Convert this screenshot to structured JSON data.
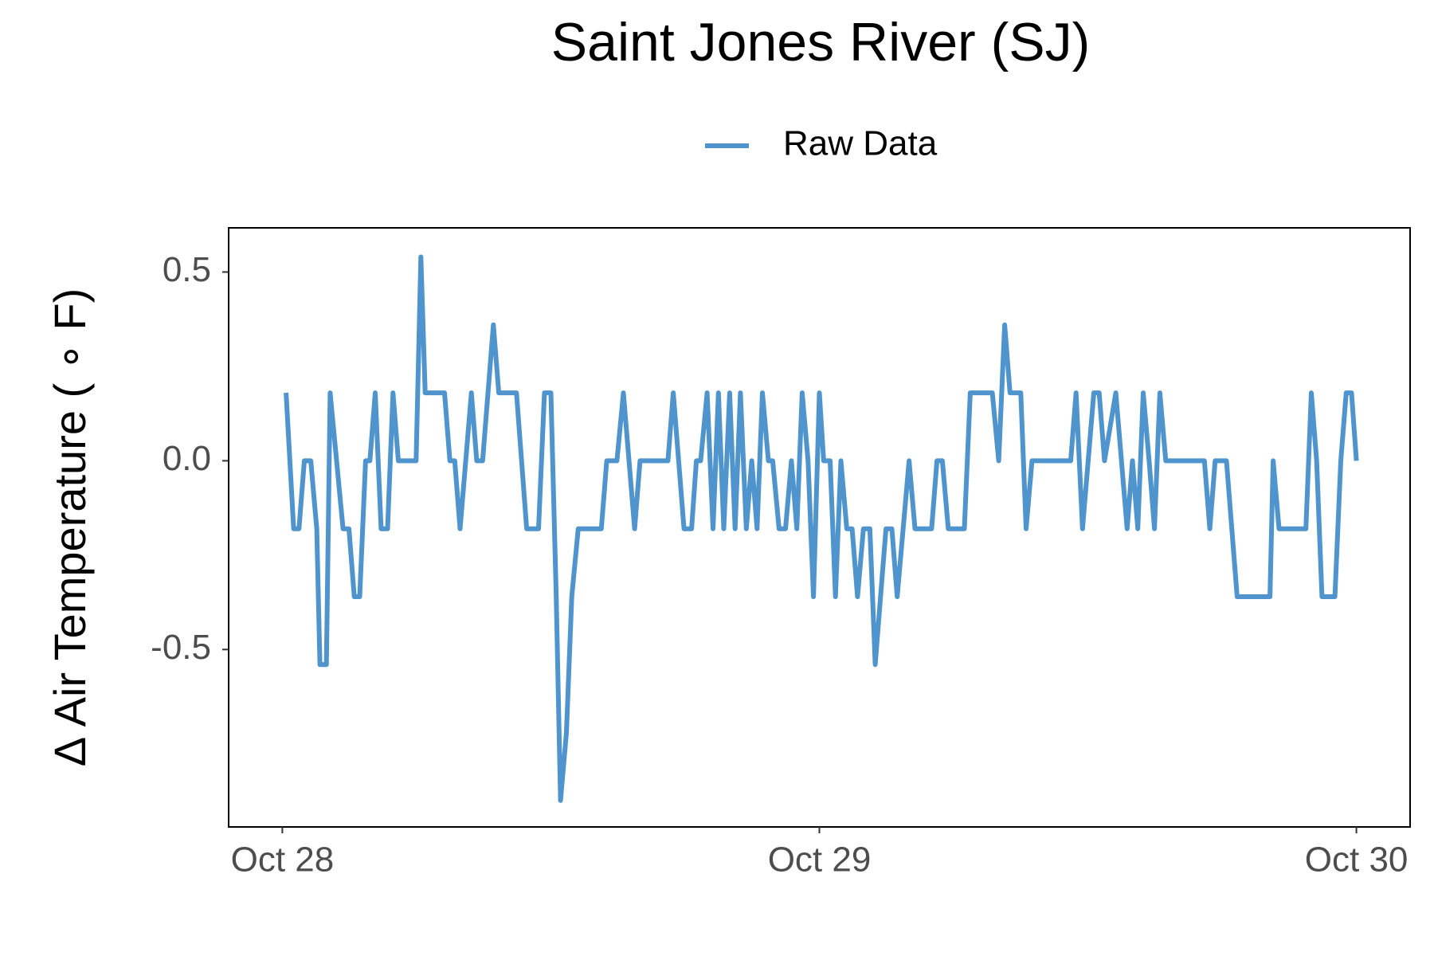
{
  "chart_data": {
    "type": "line",
    "title": "Saint Jones River (SJ)",
    "y_label": "Δ Air Temperature ( ∘ F)",
    "x": [
      28.007,
      28.021,
      28.031,
      28.041,
      28.053,
      28.064,
      28.07,
      28.082,
      28.089,
      28.113,
      28.124,
      28.134,
      28.144,
      28.155,
      28.163,
      28.173,
      28.184,
      28.196,
      28.206,
      28.216,
      28.249,
      28.258,
      28.266,
      28.302,
      28.312,
      28.321,
      28.331,
      28.352,
      28.362,
      28.373,
      28.393,
      28.403,
      28.436,
      28.455,
      28.477,
      28.488,
      28.5,
      28.51,
      28.518,
      28.529,
      28.539,
      28.551,
      28.594,
      28.604,
      28.623,
      28.635,
      28.656,
      28.666,
      28.718,
      28.728,
      28.748,
      28.762,
      28.771,
      28.779,
      28.791,
      28.802,
      28.812,
      28.822,
      28.833,
      28.843,
      28.853,
      28.864,
      28.874,
      28.884,
      28.894,
      28.905,
      28.913,
      28.925,
      28.937,
      28.948,
      28.958,
      28.968,
      28.979,
      28.989,
      29.0,
      29.008,
      29.02,
      29.03,
      29.04,
      29.051,
      29.061,
      29.071,
      29.082,
      29.094,
      29.104,
      29.114,
      29.124,
      29.135,
      29.145,
      29.167,
      29.178,
      29.209,
      29.219,
      29.229,
      29.24,
      29.27,
      29.281,
      29.322,
      29.334,
      29.345,
      29.355,
      29.375,
      29.385,
      29.396,
      29.468,
      29.478,
      29.49,
      29.511,
      29.521,
      29.531,
      29.552,
      29.573,
      29.583,
      29.593,
      29.603,
      29.614,
      29.624,
      29.634,
      29.645,
      29.717,
      29.727,
      29.737,
      29.758,
      29.778,
      29.839,
      29.845,
      29.856,
      29.906,
      29.916,
      29.926,
      29.936,
      29.96,
      29.971,
      29.981,
      29.991,
      30.0
    ],
    "series": [
      {
        "name": "Raw Data",
        "color": "#4f94cd",
        "values": [
          0.18,
          -0.18,
          -0.18,
          0,
          0,
          -0.18,
          -0.54,
          -0.54,
          0.18,
          -0.18,
          -0.18,
          -0.36,
          -0.36,
          0,
          0,
          0.18,
          -0.18,
          -0.18,
          0.18,
          0,
          0,
          0.54,
          0.18,
          0.18,
          0,
          0,
          -0.18,
          0.18,
          0,
          0,
          0.36,
          0.18,
          0.18,
          -0.18,
          -0.18,
          0.18,
          0.18,
          -0.36,
          -0.9,
          -0.72,
          -0.36,
          -0.18,
          -0.18,
          0,
          0,
          0.18,
          -0.18,
          0,
          0,
          0.18,
          -0.18,
          -0.18,
          0,
          0,
          0.18,
          -0.18,
          0.18,
          -0.18,
          0.18,
          -0.18,
          0.18,
          -0.18,
          0,
          -0.18,
          0.18,
          0,
          0,
          -0.18,
          -0.18,
          0,
          -0.18,
          0.18,
          0,
          -0.36,
          0.18,
          0,
          0,
          -0.36,
          0,
          -0.18,
          -0.18,
          -0.36,
          -0.18,
          -0.18,
          -0.54,
          -0.36,
          -0.18,
          -0.18,
          -0.36,
          0,
          -0.18,
          -0.18,
          0,
          0,
          -0.18,
          -0.18,
          0.18,
          0.18,
          0,
          0.36,
          0.18,
          0.18,
          -0.18,
          0,
          0,
          0.18,
          -0.18,
          0.18,
          0.18,
          0,
          0.18,
          -0.18,
          0,
          -0.18,
          0.18,
          0,
          -0.18,
          0.18,
          0,
          0,
          -0.18,
          0,
          0,
          -0.36,
          -0.36,
          0,
          -0.18,
          -0.18,
          0.18,
          0,
          -0.36,
          -0.36,
          0,
          0.18,
          0.18,
          0
        ]
      }
    ],
    "xlim": [
      27.9,
      30.1
    ],
    "xticks": [
      {
        "value": 28,
        "label": "Oct 28"
      },
      {
        "value": 29,
        "label": "Oct 29"
      },
      {
        "value": 30,
        "label": "Oct 30"
      }
    ],
    "ylim": [
      -0.97,
      0.617
    ],
    "yticks": [
      {
        "value": -0.5,
        "label": "-0.5"
      },
      {
        "value": 0,
        "label": "0.0"
      },
      0.5
    ],
    "legend": "top",
    "grid": false
  }
}
